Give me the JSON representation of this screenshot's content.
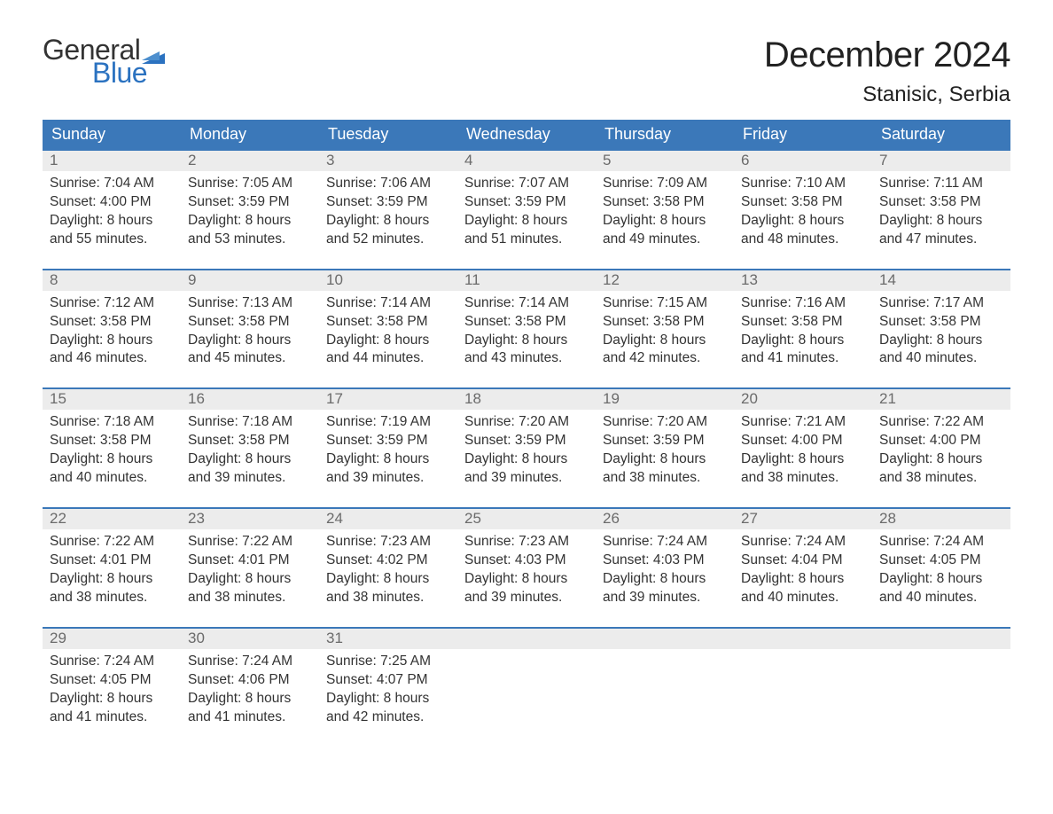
{
  "logo": {
    "text_general": "General",
    "text_blue": "Blue",
    "flag_color": "#2b72c0"
  },
  "header": {
    "month_title": "December 2024",
    "location": "Stanisic, Serbia"
  },
  "colors": {
    "header_bg": "#3b78b9",
    "header_text": "#ffffff",
    "daynum_bg": "#ececec",
    "daynum_text": "#6b6b6b",
    "body_text": "#333333",
    "week_border": "#3b78b9",
    "page_bg": "#ffffff",
    "logo_blue": "#2b72c0"
  },
  "typography": {
    "month_title_fontsize": 40,
    "location_fontsize": 24,
    "day_header_fontsize": 18,
    "daynum_fontsize": 17,
    "body_fontsize": 15.5,
    "font_family": "Arial"
  },
  "day_names": [
    "Sunday",
    "Monday",
    "Tuesday",
    "Wednesday",
    "Thursday",
    "Friday",
    "Saturday"
  ],
  "weeks": [
    [
      {
        "n": "1",
        "sunrise": "Sunrise: 7:04 AM",
        "sunset": "Sunset: 4:00 PM",
        "d1": "Daylight: 8 hours",
        "d2": "and 55 minutes."
      },
      {
        "n": "2",
        "sunrise": "Sunrise: 7:05 AM",
        "sunset": "Sunset: 3:59 PM",
        "d1": "Daylight: 8 hours",
        "d2": "and 53 minutes."
      },
      {
        "n": "3",
        "sunrise": "Sunrise: 7:06 AM",
        "sunset": "Sunset: 3:59 PM",
        "d1": "Daylight: 8 hours",
        "d2": "and 52 minutes."
      },
      {
        "n": "4",
        "sunrise": "Sunrise: 7:07 AM",
        "sunset": "Sunset: 3:59 PM",
        "d1": "Daylight: 8 hours",
        "d2": "and 51 minutes."
      },
      {
        "n": "5",
        "sunrise": "Sunrise: 7:09 AM",
        "sunset": "Sunset: 3:58 PM",
        "d1": "Daylight: 8 hours",
        "d2": "and 49 minutes."
      },
      {
        "n": "6",
        "sunrise": "Sunrise: 7:10 AM",
        "sunset": "Sunset: 3:58 PM",
        "d1": "Daylight: 8 hours",
        "d2": "and 48 minutes."
      },
      {
        "n": "7",
        "sunrise": "Sunrise: 7:11 AM",
        "sunset": "Sunset: 3:58 PM",
        "d1": "Daylight: 8 hours",
        "d2": "and 47 minutes."
      }
    ],
    [
      {
        "n": "8",
        "sunrise": "Sunrise: 7:12 AM",
        "sunset": "Sunset: 3:58 PM",
        "d1": "Daylight: 8 hours",
        "d2": "and 46 minutes."
      },
      {
        "n": "9",
        "sunrise": "Sunrise: 7:13 AM",
        "sunset": "Sunset: 3:58 PM",
        "d1": "Daylight: 8 hours",
        "d2": "and 45 minutes."
      },
      {
        "n": "10",
        "sunrise": "Sunrise: 7:14 AM",
        "sunset": "Sunset: 3:58 PM",
        "d1": "Daylight: 8 hours",
        "d2": "and 44 minutes."
      },
      {
        "n": "11",
        "sunrise": "Sunrise: 7:14 AM",
        "sunset": "Sunset: 3:58 PM",
        "d1": "Daylight: 8 hours",
        "d2": "and 43 minutes."
      },
      {
        "n": "12",
        "sunrise": "Sunrise: 7:15 AM",
        "sunset": "Sunset: 3:58 PM",
        "d1": "Daylight: 8 hours",
        "d2": "and 42 minutes."
      },
      {
        "n": "13",
        "sunrise": "Sunrise: 7:16 AM",
        "sunset": "Sunset: 3:58 PM",
        "d1": "Daylight: 8 hours",
        "d2": "and 41 minutes."
      },
      {
        "n": "14",
        "sunrise": "Sunrise: 7:17 AM",
        "sunset": "Sunset: 3:58 PM",
        "d1": "Daylight: 8 hours",
        "d2": "and 40 minutes."
      }
    ],
    [
      {
        "n": "15",
        "sunrise": "Sunrise: 7:18 AM",
        "sunset": "Sunset: 3:58 PM",
        "d1": "Daylight: 8 hours",
        "d2": "and 40 minutes."
      },
      {
        "n": "16",
        "sunrise": "Sunrise: 7:18 AM",
        "sunset": "Sunset: 3:58 PM",
        "d1": "Daylight: 8 hours",
        "d2": "and 39 minutes."
      },
      {
        "n": "17",
        "sunrise": "Sunrise: 7:19 AM",
        "sunset": "Sunset: 3:59 PM",
        "d1": "Daylight: 8 hours",
        "d2": "and 39 minutes."
      },
      {
        "n": "18",
        "sunrise": "Sunrise: 7:20 AM",
        "sunset": "Sunset: 3:59 PM",
        "d1": "Daylight: 8 hours",
        "d2": "and 39 minutes."
      },
      {
        "n": "19",
        "sunrise": "Sunrise: 7:20 AM",
        "sunset": "Sunset: 3:59 PM",
        "d1": "Daylight: 8 hours",
        "d2": "and 38 minutes."
      },
      {
        "n": "20",
        "sunrise": "Sunrise: 7:21 AM",
        "sunset": "Sunset: 4:00 PM",
        "d1": "Daylight: 8 hours",
        "d2": "and 38 minutes."
      },
      {
        "n": "21",
        "sunrise": "Sunrise: 7:22 AM",
        "sunset": "Sunset: 4:00 PM",
        "d1": "Daylight: 8 hours",
        "d2": "and 38 minutes."
      }
    ],
    [
      {
        "n": "22",
        "sunrise": "Sunrise: 7:22 AM",
        "sunset": "Sunset: 4:01 PM",
        "d1": "Daylight: 8 hours",
        "d2": "and 38 minutes."
      },
      {
        "n": "23",
        "sunrise": "Sunrise: 7:22 AM",
        "sunset": "Sunset: 4:01 PM",
        "d1": "Daylight: 8 hours",
        "d2": "and 38 minutes."
      },
      {
        "n": "24",
        "sunrise": "Sunrise: 7:23 AM",
        "sunset": "Sunset: 4:02 PM",
        "d1": "Daylight: 8 hours",
        "d2": "and 38 minutes."
      },
      {
        "n": "25",
        "sunrise": "Sunrise: 7:23 AM",
        "sunset": "Sunset: 4:03 PM",
        "d1": "Daylight: 8 hours",
        "d2": "and 39 minutes."
      },
      {
        "n": "26",
        "sunrise": "Sunrise: 7:24 AM",
        "sunset": "Sunset: 4:03 PM",
        "d1": "Daylight: 8 hours",
        "d2": "and 39 minutes."
      },
      {
        "n": "27",
        "sunrise": "Sunrise: 7:24 AM",
        "sunset": "Sunset: 4:04 PM",
        "d1": "Daylight: 8 hours",
        "d2": "and 40 minutes."
      },
      {
        "n": "28",
        "sunrise": "Sunrise: 7:24 AM",
        "sunset": "Sunset: 4:05 PM",
        "d1": "Daylight: 8 hours",
        "d2": "and 40 minutes."
      }
    ],
    [
      {
        "n": "29",
        "sunrise": "Sunrise: 7:24 AM",
        "sunset": "Sunset: 4:05 PM",
        "d1": "Daylight: 8 hours",
        "d2": "and 41 minutes."
      },
      {
        "n": "30",
        "sunrise": "Sunrise: 7:24 AM",
        "sunset": "Sunset: 4:06 PM",
        "d1": "Daylight: 8 hours",
        "d2": "and 41 minutes."
      },
      {
        "n": "31",
        "sunrise": "Sunrise: 7:25 AM",
        "sunset": "Sunset: 4:07 PM",
        "d1": "Daylight: 8 hours",
        "d2": "and 42 minutes."
      },
      null,
      null,
      null,
      null
    ]
  ]
}
